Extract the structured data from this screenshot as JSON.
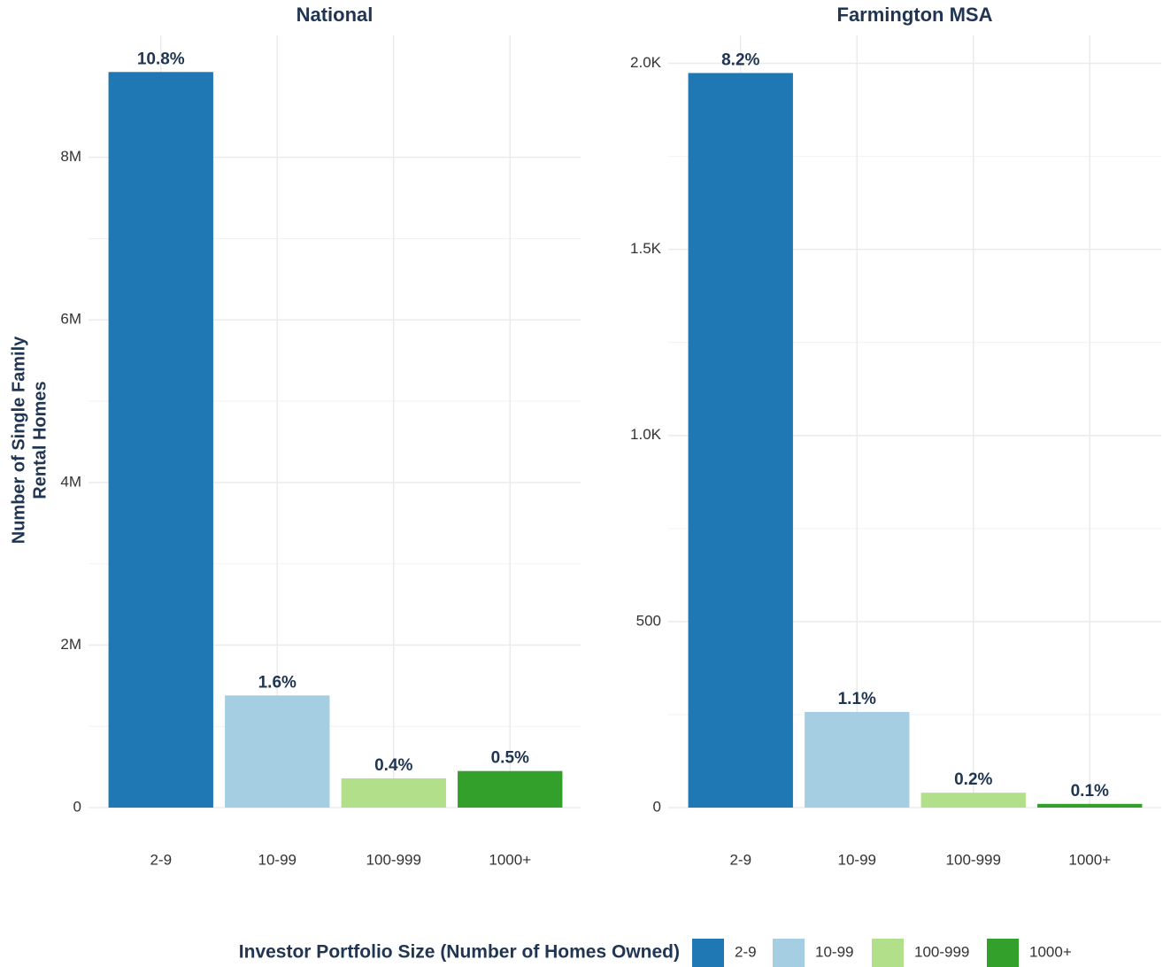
{
  "chart_data": [
    {
      "type": "bar",
      "title": "National",
      "ylabel": [
        "Number of Single Family",
        "Rental Homes"
      ],
      "categories": [
        "2-9",
        "10-99",
        "100-999",
        "1000+"
      ],
      "values": [
        9050000,
        1380000,
        360000,
        450000
      ],
      "bar_labels": [
        "10.8%",
        "1.6%",
        "0.4%",
        "0.5%"
      ],
      "ylim": [
        0,
        9500000
      ],
      "yticks": [
        0,
        {
          "value": 2000000,
          "label": "2M"
        },
        {
          "value": 4000000,
          "label": "4M"
        },
        {
          "value": 6000000,
          "label": "6M"
        },
        {
          "value": 8000000,
          "label": "8M"
        }
      ],
      "grid": true
    },
    {
      "type": "bar",
      "title": "Farmington MSA",
      "categories": [
        "2-9",
        "10-99",
        "100-999",
        "1000+"
      ],
      "values": [
        1974,
        257,
        40,
        10
      ],
      "bar_labels": [
        "8.2%",
        "1.1%",
        "0.2%",
        "0.1%"
      ],
      "ylim": [
        0,
        2075
      ],
      "yticks": [
        0,
        500,
        {
          "value": 1000,
          "label": "1.0K"
        },
        {
          "value": 1500,
          "label": "1.5K"
        },
        {
          "value": 2000,
          "label": "2.0K"
        }
      ],
      "grid": true
    }
  ],
  "legend": {
    "title": "Investor Portfolio Size (Number of Homes Owned)",
    "items": [
      {
        "name": "2-9",
        "color": "#1f78b4"
      },
      {
        "name": "10-99",
        "color": "#a6cee3"
      },
      {
        "name": "100-999",
        "color": "#b2df8a"
      },
      {
        "name": "1000+",
        "color": "#33a02c"
      }
    ]
  }
}
